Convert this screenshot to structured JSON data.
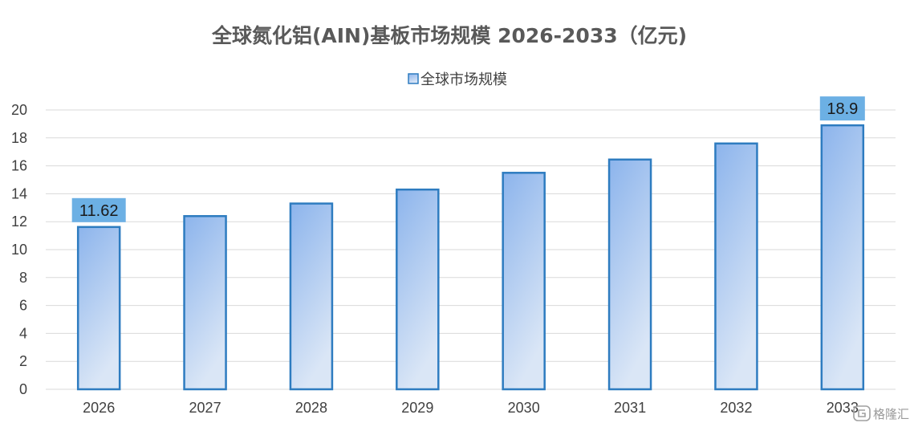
{
  "chart_data": {
    "type": "bar",
    "title": "全球氮化铝(AIN)基板市场规模 2026-2033（亿元)",
    "categories": [
      "2026",
      "2027",
      "2028",
      "2029",
      "2030",
      "2031",
      "2032",
      "2033"
    ],
    "series": [
      {
        "name": "全球市场规模",
        "values": [
          11.62,
          12.4,
          13.3,
          14.3,
          15.5,
          16.45,
          17.6,
          18.9
        ]
      }
    ],
    "data_labels": [
      {
        "category": "2026",
        "text": "11.62"
      },
      {
        "category": "2033",
        "text": "18.9"
      }
    ],
    "y_ticks": [
      "0",
      "2",
      "4",
      "6",
      "8",
      "10",
      "12",
      "14",
      "16",
      "18",
      "20"
    ],
    "ylim": [
      0,
      20
    ],
    "grid": true,
    "legend_position": "top-center",
    "colors": {
      "bar_top": "#8cb4ec",
      "bar_bottom": "#dae6f6",
      "bar_border": "#2e7cc0",
      "label_bg": "#6cb0e4",
      "grid": "#d9d9d9"
    }
  },
  "watermark": {
    "text": "格隆汇"
  }
}
